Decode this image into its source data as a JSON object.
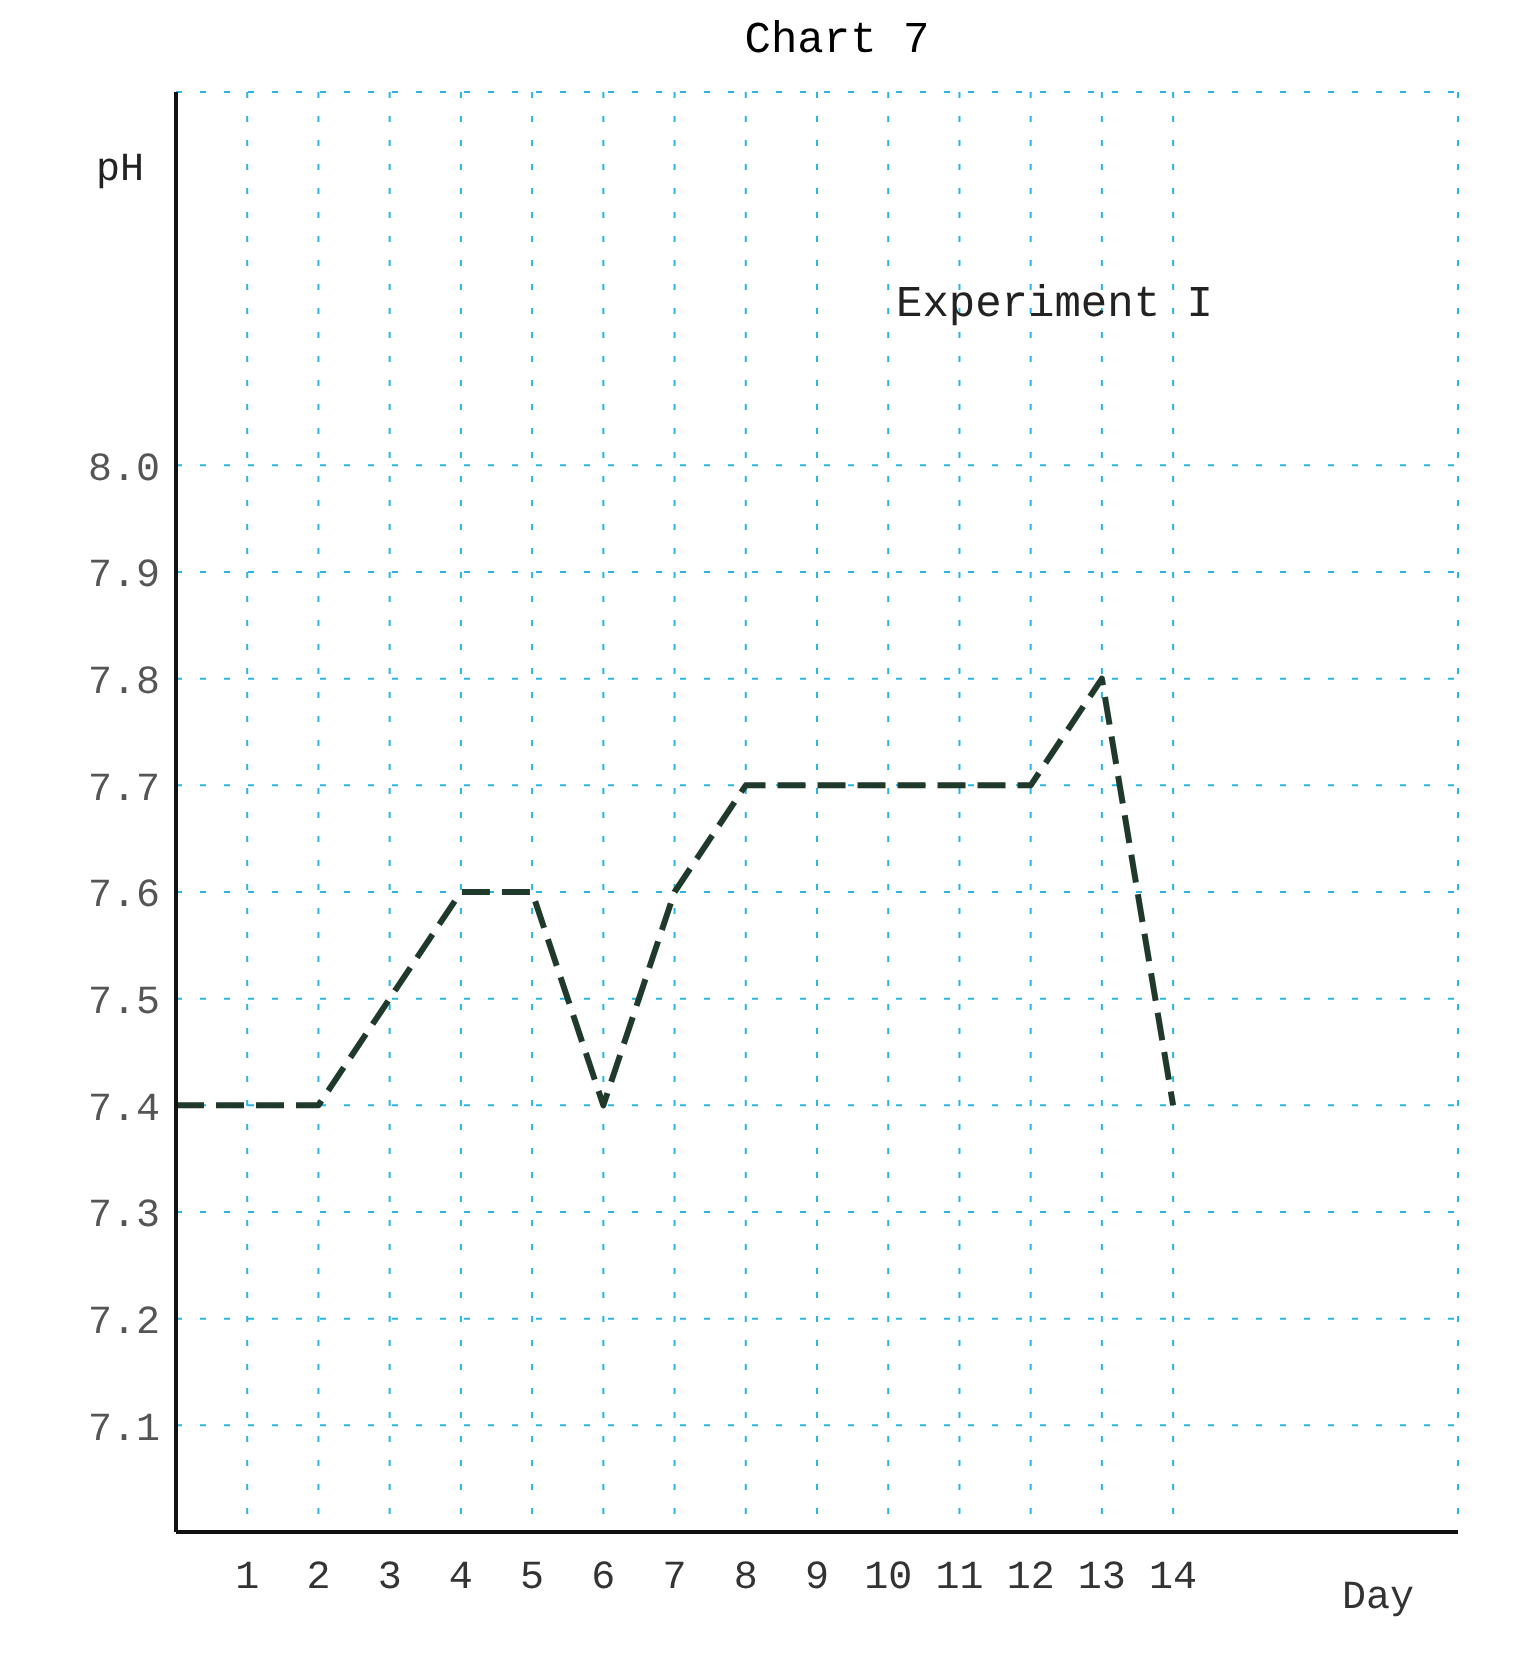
{
  "chart_data": {
    "type": "line",
    "title": "Chart 7",
    "xlabel": "Day",
    "ylabel": "pH",
    "annotations": [
      "Experiment I"
    ],
    "x": [
      0,
      1,
      2,
      3,
      4,
      5,
      6,
      7,
      8,
      9,
      10,
      11,
      12,
      13,
      14
    ],
    "series": [
      {
        "color": "#1f3a2a",
        "values": [
          7.4,
          7.4,
          7.4,
          7.5,
          7.6,
          7.6,
          7.4,
          7.6,
          7.7,
          7.7,
          7.7,
          7.7,
          7.7,
          7.8,
          7.4
        ]
      }
    ],
    "xlim": [
      0,
      18
    ],
    "xticks": [
      1,
      2,
      3,
      4,
      5,
      6,
      7,
      8,
      9,
      10,
      11,
      12,
      13,
      14
    ],
    "ylim": [
      7.0,
      8.35
    ],
    "yticks": [
      7.1,
      7.2,
      7.3,
      7.4,
      7.5,
      7.6,
      7.7,
      7.8,
      7.9,
      {
        "value": 8,
        "label": "8.0"
      }
    ],
    "grid": true,
    "marker": "none",
    "line_style": "dashed"
  }
}
